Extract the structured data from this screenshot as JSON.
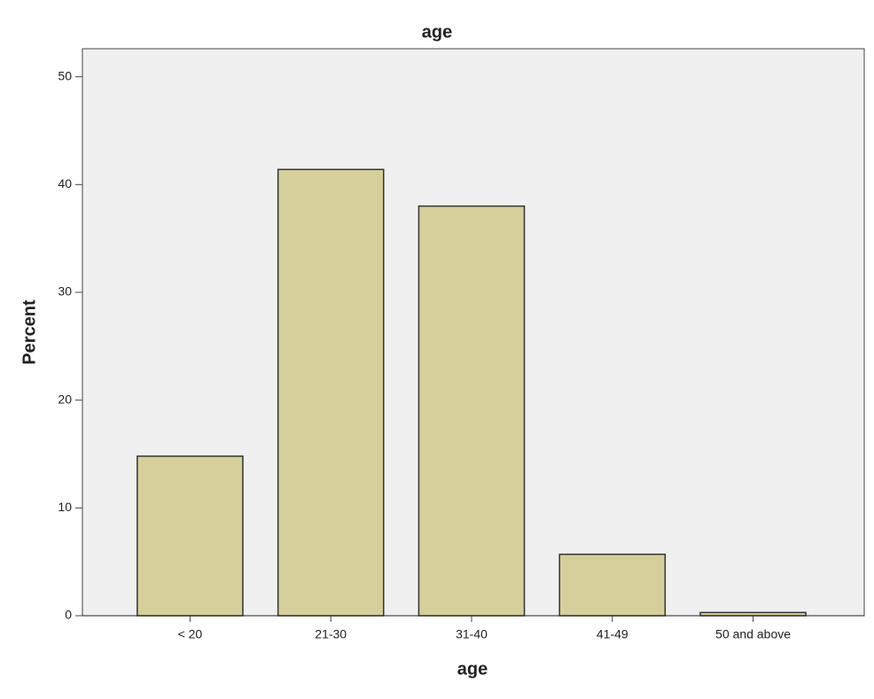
{
  "chart_data": {
    "type": "bar",
    "title": "age",
    "x_label": "age",
    "y_label": "Percent",
    "categories": [
      "< 20",
      "21-30",
      "31-40",
      "41-49",
      "50 and above"
    ],
    "values": [
      14.8,
      41.4,
      38.0,
      5.7,
      0.3
    ],
    "color": "#d4cf9b",
    "ylim": [
      0,
      52.6
    ],
    "yticks": [
      0,
      10,
      20,
      30,
      40,
      50
    ],
    "grid": false
  }
}
